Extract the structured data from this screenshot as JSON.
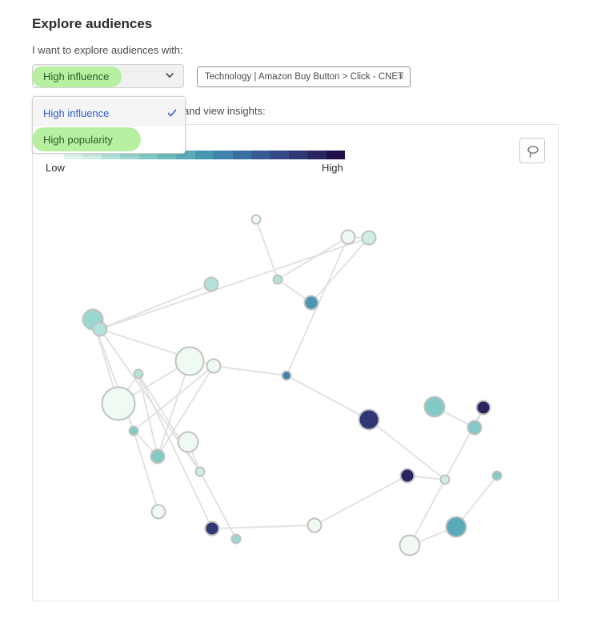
{
  "page": {
    "title": "Explore audiences",
    "subtitle": "I want to explore audiences with:",
    "helper_text": "and view insights:"
  },
  "select": {
    "value": "High influence",
    "options": [
      {
        "label": "High influence",
        "selected": true
      },
      {
        "label": "High popularity",
        "selected": false
      }
    ]
  },
  "filter_tag": {
    "label": "Technology | Amazon Buy Button > Click - CNET",
    "remove_icon": "close-icon"
  },
  "legend": {
    "low_label": "Low",
    "high_label": "High",
    "colors": [
      "#e4f5ef",
      "#cdede6",
      "#b3e2da",
      "#9bd6cf",
      "#83cac6",
      "#6ebcbf",
      "#5aaab9",
      "#4a97b2",
      "#3f83aa",
      "#3a6fa1",
      "#385b95",
      "#354986",
      "#303774",
      "#29265f",
      "#210f4b"
    ]
  },
  "toolbar": {
    "lasso_icon": "lasso-icon"
  },
  "colors": {
    "accent": "#2b5fcf",
    "highlight": "#b8f0a2",
    "edge": "#e2e2e2",
    "node_stroke": "#c2c2c2"
  },
  "graph": {
    "nodes": [
      {
        "id": "n1",
        "level": 0.05,
        "size": "s"
      },
      {
        "id": "n2",
        "level": 0.05,
        "size": "m"
      },
      {
        "id": "n3",
        "level": 0.08,
        "size": "m"
      },
      {
        "id": "n4",
        "level": 0.15,
        "size": "m"
      },
      {
        "id": "n5",
        "level": 0.12,
        "size": "s"
      },
      {
        "id": "n6",
        "level": 0.5,
        "size": "m"
      },
      {
        "id": "n7",
        "level": 0.2,
        "size": "l"
      },
      {
        "id": "n8",
        "level": 0.15,
        "size": "m"
      },
      {
        "id": "n9",
        "level": 0.05,
        "size": "xl"
      },
      {
        "id": "n10",
        "level": 0.05,
        "size": "m"
      },
      {
        "id": "n11",
        "level": 0.12,
        "size": "s"
      },
      {
        "id": "n12",
        "level": 0.55,
        "size": "s"
      },
      {
        "id": "n13",
        "level": 0.02,
        "size": "xxl"
      },
      {
        "id": "n14",
        "level": 0.3,
        "size": "s"
      },
      {
        "id": "n15",
        "level": 0.05,
        "size": "l"
      },
      {
        "id": "n16",
        "level": 0.3,
        "size": "m"
      },
      {
        "id": "n17",
        "level": 0.1,
        "size": "s"
      },
      {
        "id": "n18",
        "level": 0.05,
        "size": "m"
      },
      {
        "id": "n19",
        "level": 0.85,
        "size": "m"
      },
      {
        "id": "n20",
        "level": 0.2,
        "size": "s"
      },
      {
        "id": "n21",
        "level": 0.05,
        "size": "m"
      },
      {
        "id": "n22",
        "level": 0.85,
        "size": "l"
      },
      {
        "id": "n23",
        "level": 0.25,
        "size": "l"
      },
      {
        "id": "n24",
        "level": 0.95,
        "size": "m"
      },
      {
        "id": "n25",
        "level": 0.3,
        "size": "m"
      },
      {
        "id": "n26",
        "level": 0.95,
        "size": "m"
      },
      {
        "id": "n27",
        "level": 0.1,
        "size": "s"
      },
      {
        "id": "n28",
        "level": 0.25,
        "size": "s"
      },
      {
        "id": "n29",
        "level": 0.45,
        "size": "l"
      },
      {
        "id": "n30",
        "level": 0.03,
        "size": "l"
      }
    ],
    "edges": [
      [
        "n1",
        "n5"
      ],
      [
        "n5",
        "n6"
      ],
      [
        "n2",
        "n5"
      ],
      [
        "n3",
        "n2"
      ],
      [
        "n3",
        "n6"
      ],
      [
        "n2",
        "n12"
      ],
      [
        "n4",
        "n8"
      ],
      [
        "n8",
        "n3"
      ],
      [
        "n8",
        "n10"
      ],
      [
        "n8",
        "n17"
      ],
      [
        "n10",
        "n12"
      ],
      [
        "n10",
        "n16"
      ],
      [
        "n10",
        "n14"
      ],
      [
        "n7",
        "n14"
      ],
      [
        "n7",
        "n13"
      ],
      [
        "n13",
        "n11"
      ],
      [
        "n11",
        "n17"
      ],
      [
        "n11",
        "n19"
      ],
      [
        "n14",
        "n16"
      ],
      [
        "n14",
        "n18"
      ],
      [
        "n19",
        "n21"
      ],
      [
        "n21",
        "n24"
      ],
      [
        "n24",
        "n27"
      ],
      [
        "n27",
        "n26"
      ],
      [
        "n12",
        "n22"
      ],
      [
        "n22",
        "n27"
      ],
      [
        "n27",
        "n30"
      ],
      [
        "n23",
        "n25"
      ],
      [
        "n26",
        "n25"
      ],
      [
        "n28",
        "n29"
      ],
      [
        "n29",
        "n30"
      ]
    ]
  }
}
